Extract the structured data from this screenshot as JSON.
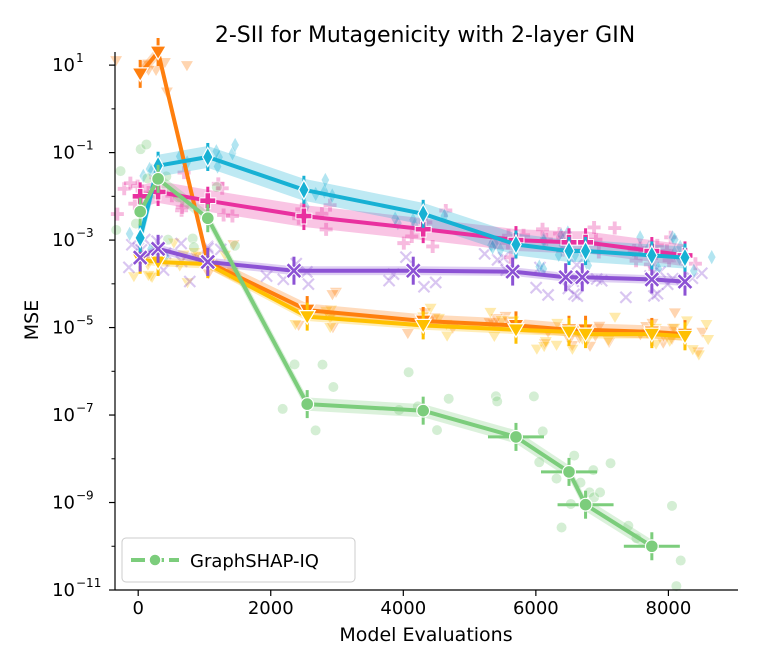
{
  "chart_data": {
    "type": "line",
    "title": "2-SII for Mutagenicity with 2-layer GIN",
    "xlabel": "Model Evaluations",
    "ylabel": "MSE",
    "xlim": [
      -350,
      9050
    ],
    "ylim_log10": [
      -11,
      1.3
    ],
    "y_scale": "log",
    "x_ticks": [
      {
        "value": 0,
        "label": "0"
      },
      {
        "value": 2000,
        "label": "2000"
      },
      {
        "value": 4000,
        "label": "4000"
      },
      {
        "value": 6000,
        "label": "6000"
      },
      {
        "value": 8000,
        "label": "8000"
      }
    ],
    "y_ticks": [
      {
        "exp": 1,
        "label": "10",
        "sup": "1"
      },
      {
        "exp": -1,
        "label": "10",
        "sup": "−1"
      },
      {
        "exp": -3,
        "label": "10",
        "sup": "−3"
      },
      {
        "exp": -5,
        "label": "10",
        "sup": "−5"
      },
      {
        "exp": -7,
        "label": "10",
        "sup": "−7"
      },
      {
        "exp": -9,
        "label": "10",
        "sup": "−9"
      },
      {
        "exp": -11,
        "label": "10",
        "sup": "−11"
      }
    ],
    "legend": {
      "position": "lower-left",
      "entries": [
        {
          "name": "GraphSHAP-IQ",
          "color": "#7ccd7c"
        }
      ]
    },
    "series": [
      {
        "name": "orange-triangle",
        "color": "#ff7f0e",
        "marker": "triangle-down",
        "points": [
          [
            30,
            0.8
          ],
          [
            300,
            1.3
          ],
          [
            1050,
            -3.5
          ],
          [
            2550,
            -4.6
          ],
          [
            4300,
            -4.85
          ],
          [
            5700,
            -4.95
          ],
          [
            6500,
            -5.05
          ],
          [
            6750,
            -5.05
          ],
          [
            7750,
            -5.1
          ],
          [
            8250,
            -5.15
          ]
        ],
        "band": 0.15
      },
      {
        "name": "gold-triangle",
        "color": "#ffc000",
        "marker": "triangle-down",
        "points": [
          [
            30,
            -3.45
          ],
          [
            300,
            -3.5
          ],
          [
            1050,
            -3.55
          ],
          [
            2550,
            -4.75
          ],
          [
            4300,
            -4.95
          ],
          [
            5700,
            -5.05
          ],
          [
            6500,
            -5.1
          ],
          [
            6750,
            -5.15
          ],
          [
            7750,
            -5.15
          ],
          [
            8250,
            -5.2
          ]
        ],
        "band": 0.1
      },
      {
        "name": "purple-cross",
        "color": "#8c52d4",
        "marker": "x",
        "points": [
          [
            30,
            -3.4
          ],
          [
            300,
            -3.2
          ],
          [
            1050,
            -3.5
          ],
          [
            2350,
            -3.7
          ],
          [
            4150,
            -3.7
          ],
          [
            5650,
            -3.72
          ],
          [
            6450,
            -3.85
          ],
          [
            6700,
            -3.85
          ],
          [
            7750,
            -3.9
          ],
          [
            8250,
            -3.95
          ]
        ],
        "band": 0.1
      },
      {
        "name": "pink-plus",
        "color": "#e9309f",
        "marker": "plus",
        "points": [
          [
            30,
            -2.0
          ],
          [
            300,
            -1.9
          ],
          [
            1050,
            -2.1
          ],
          [
            2500,
            -2.45
          ],
          [
            4300,
            -2.75
          ],
          [
            5700,
            -3.0
          ],
          [
            6500,
            -3.05
          ],
          [
            6750,
            -3.05
          ],
          [
            7750,
            -3.25
          ],
          [
            8250,
            -3.35
          ]
        ],
        "band": 0.25
      },
      {
        "name": "cyan-diamond",
        "color": "#17b1d4",
        "marker": "diamond",
        "points": [
          [
            30,
            -2.95
          ],
          [
            300,
            -1.3
          ],
          [
            1050,
            -1.1
          ],
          [
            2500,
            -1.85
          ],
          [
            4300,
            -2.4
          ],
          [
            5700,
            -3.1
          ],
          [
            6500,
            -3.25
          ],
          [
            6750,
            -3.25
          ],
          [
            7750,
            -3.35
          ],
          [
            8250,
            -3.4
          ]
        ],
        "band": 0.25
      },
      {
        "name": "GraphSHAP-IQ",
        "color": "#7ccd7c",
        "marker": "circle",
        "points": [
          [
            30,
            -2.35
          ],
          [
            300,
            -1.6
          ],
          [
            1050,
            -2.5
          ],
          [
            2550,
            -6.75
          ],
          [
            4300,
            -6.9
          ],
          [
            5700,
            -7.5
          ],
          [
            6500,
            -8.3
          ],
          [
            6750,
            -9.05
          ],
          [
            7750,
            -10.0
          ]
        ],
        "band": 0.15
      }
    ]
  }
}
